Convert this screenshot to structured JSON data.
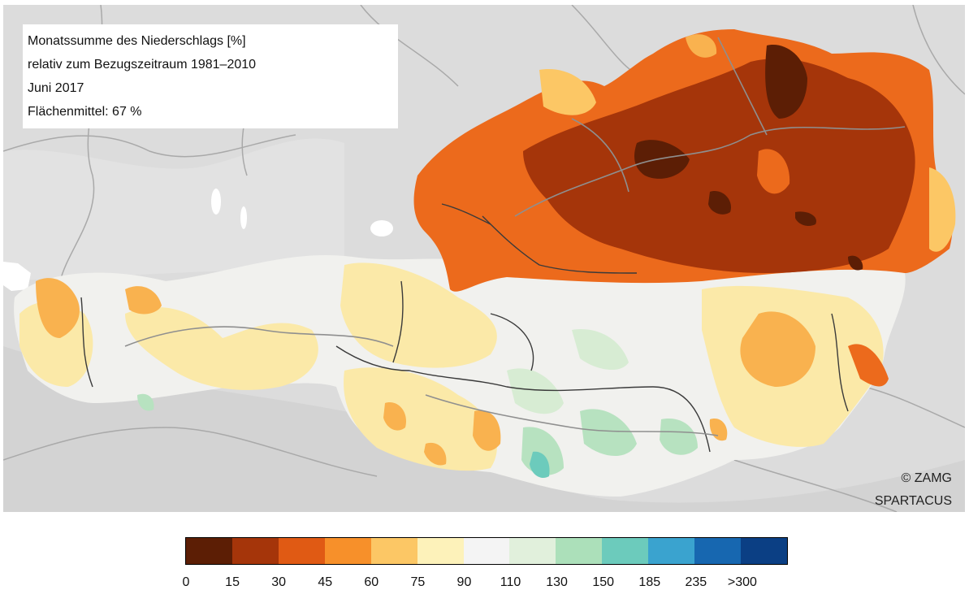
{
  "info": {
    "title": "Monatssumme des Niederschlags [%]",
    "reference": "relativ zum Bezugszeitraum 1981–2010",
    "period": "Juni 2017",
    "area_mean": "Flächenmittel: 67 %"
  },
  "credits": {
    "line1": "© ZAMG",
    "line2": "SPARTACUS"
  },
  "legend": {
    "colors": [
      "#5c1e05",
      "#a5350a",
      "#e05a14",
      "#f7902a",
      "#fcc765",
      "#fdf2ba",
      "#f4f4f4",
      "#e1f0dc",
      "#ace0ba",
      "#6ccbbc",
      "#3aa3cf",
      "#1767b0",
      "#0b3f84"
    ],
    "tick_labels": [
      "0",
      "15",
      "30",
      "45",
      "60",
      "75",
      "90",
      "110",
      "130",
      "150",
      "185",
      "235",
      ">300"
    ]
  }
}
